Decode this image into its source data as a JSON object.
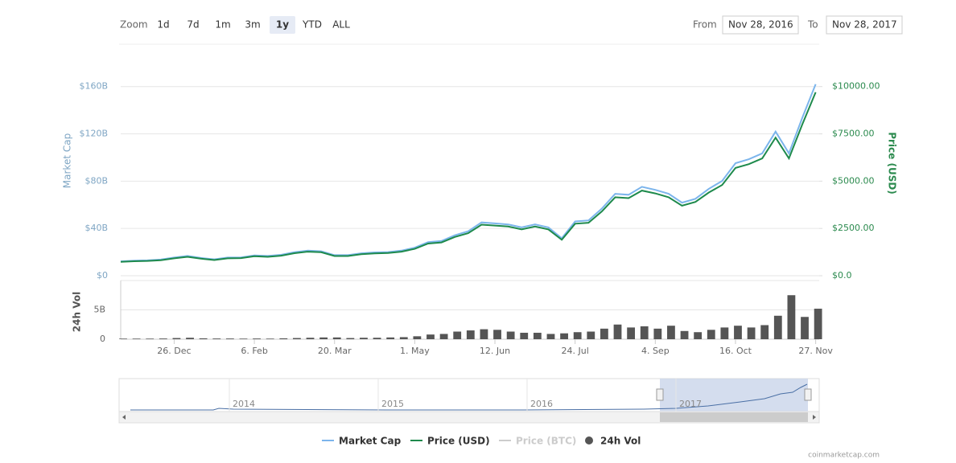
{
  "zoom": {
    "label": "Zoom",
    "buttons": [
      "1d",
      "7d",
      "1m",
      "3m",
      "1y",
      "YTD",
      "ALL"
    ],
    "active": "1y"
  },
  "range": {
    "from_label": "From",
    "from": "Nov 28, 2016",
    "to_label": "To",
    "to": "Nov 28, 2017"
  },
  "chart_data": {
    "type": "line",
    "x": [
      "2016-11-28",
      "2016-12-05",
      "2016-12-12",
      "2016-12-19",
      "2016-12-26",
      "2017-01-02",
      "2017-01-09",
      "2017-01-16",
      "2017-01-23",
      "2017-01-30",
      "2017-02-06",
      "2017-02-13",
      "2017-02-20",
      "2017-02-27",
      "2017-03-06",
      "2017-03-13",
      "2017-03-20",
      "2017-03-27",
      "2017-04-03",
      "2017-04-10",
      "2017-04-17",
      "2017-04-24",
      "2017-05-01",
      "2017-05-08",
      "2017-05-15",
      "2017-05-22",
      "2017-05-29",
      "2017-06-05",
      "2017-06-12",
      "2017-06-19",
      "2017-06-26",
      "2017-07-03",
      "2017-07-10",
      "2017-07-17",
      "2017-07-24",
      "2017-07-31",
      "2017-08-07",
      "2017-08-14",
      "2017-08-21",
      "2017-08-28",
      "2017-09-04",
      "2017-09-11",
      "2017-09-18",
      "2017-09-25",
      "2017-10-02",
      "2017-10-09",
      "2017-10-16",
      "2017-10-23",
      "2017-10-30",
      "2017-11-06",
      "2017-11-13",
      "2017-11-20",
      "2017-11-27"
    ],
    "xlim": [
      "2016-11-28",
      "2017-11-28"
    ],
    "xticks": [
      {
        "value": "2016-12-26",
        "label": "26. Dec"
      },
      {
        "value": "2017-02-06",
        "label": "6. Feb"
      },
      {
        "value": "2017-03-20",
        "label": "20. Mar"
      },
      {
        "value": "2017-05-01",
        "label": "1. May"
      },
      {
        "value": "2017-06-12",
        "label": "12. Jun"
      },
      {
        "value": "2017-07-24",
        "label": "24. Jul"
      },
      {
        "value": "2017-09-04",
        "label": "4. Sep"
      },
      {
        "value": "2017-10-16",
        "label": "16. Oct"
      },
      {
        "value": "2017-11-27",
        "label": "27. Nov"
      }
    ],
    "y_label": "Market Cap",
    "ylim": [
      0,
      170
    ],
    "yticks": [
      {
        "value": 0,
        "label": "$0"
      },
      {
        "value": 40,
        "label": "$40B"
      },
      {
        "value": 80,
        "label": "$80B"
      },
      {
        "value": 120,
        "label": "$120B"
      },
      {
        "value": 160,
        "label": "$160B"
      }
    ],
    "y2_label": "Price (USD)",
    "y2lim": [
      0,
      10625
    ],
    "y2ticks": [
      {
        "value": 0,
        "label": "$0.0"
      },
      {
        "value": 2500,
        "label": "$2500.00"
      },
      {
        "value": 5000,
        "label": "$5000.00"
      },
      {
        "value": 7500,
        "label": "$7500.00"
      },
      {
        "value": 10000,
        "label": "$10000.00"
      }
    ],
    "grid": true,
    "series": [
      {
        "name": "Market Cap",
        "color": "#7cb5ec",
        "values": [
          12.2,
          12.8,
          13.0,
          13.7,
          15.4,
          16.7,
          15.0,
          13.9,
          15.4,
          15.5,
          17.2,
          16.7,
          17.7,
          19.9,
          21.2,
          20.7,
          17.4,
          17.4,
          19.0,
          19.7,
          20.0,
          21.2,
          23.7,
          28.4,
          29.4,
          34.2,
          37.6,
          45.1,
          44.3,
          43.4,
          40.9,
          43.4,
          40.9,
          31.7,
          45.9,
          46.8,
          56.8,
          69.3,
          68.5,
          75.2,
          72.6,
          69.3,
          61.8,
          65.1,
          73.5,
          80.2,
          95.2,
          98.5,
          103.5,
          121.9,
          103.5,
          133.6,
          162.0
        ]
      },
      {
        "name": "Price (USD)",
        "color": "#1e8a4c",
        "axis": "y2",
        "values": [
          730,
          765,
          780,
          820,
          920,
          1000,
          900,
          830,
          920,
          930,
          1030,
          1000,
          1060,
          1190,
          1270,
          1240,
          1040,
          1040,
          1140,
          1180,
          1200,
          1270,
          1420,
          1700,
          1760,
          2050,
          2250,
          2700,
          2650,
          2600,
          2450,
          2600,
          2450,
          1900,
          2750,
          2800,
          3400,
          4150,
          4100,
          4500,
          4350,
          4150,
          3700,
          3900,
          4400,
          4800,
          5700,
          5900,
          6200,
          7300,
          6200,
          8000,
          9700
        ]
      },
      {
        "name": "Price (BTC)",
        "color": "#cccccc",
        "visible": false
      }
    ],
    "volume": {
      "name": "24h Vol",
      "color": "#555555",
      "ylim": [
        0,
        10
      ],
      "yticks": [
        0,
        {
          "value": 5,
          "label": "5B"
        }
      ],
      "values": [
        0.1,
        0.1,
        0.1,
        0.12,
        0.2,
        0.25,
        0.15,
        0.12,
        0.12,
        0.1,
        0.12,
        0.1,
        0.15,
        0.2,
        0.25,
        0.3,
        0.3,
        0.2,
        0.25,
        0.25,
        0.3,
        0.35,
        0.5,
        0.8,
        0.9,
        1.3,
        1.5,
        1.7,
        1.6,
        1.3,
        1.1,
        1.1,
        0.9,
        1.0,
        1.2,
        1.3,
        1.8,
        2.5,
        2.0,
        2.2,
        1.8,
        2.3,
        1.4,
        1.2,
        1.6,
        2.0,
        2.3,
        2.0,
        2.4,
        4.0,
        7.5,
        3.8,
        5.2
      ]
    }
  },
  "navigator": {
    "labels": [
      "2014",
      "2015",
      "2016",
      "2017"
    ]
  },
  "source": "coinmarketcap.com"
}
